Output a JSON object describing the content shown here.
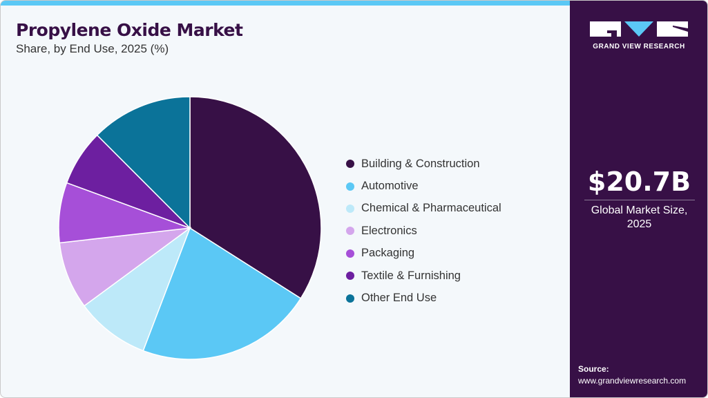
{
  "header": {
    "title": "Propylene Oxide Market",
    "subtitle": "Share, by End Use, 2025 (%)"
  },
  "brand": {
    "name": "GRAND VIEW RESEARCH",
    "accent": "#5bc8f5",
    "panel": "#371046"
  },
  "stat": {
    "value": "$20.7B",
    "label_line1": "Global Market Size,",
    "label_line2": "2025"
  },
  "source": {
    "label": "Source:",
    "url": "www.grandviewresearch.com"
  },
  "chart_data": {
    "type": "pie",
    "title": "Propylene Oxide Market",
    "subtitle": "Share, by End Use, 2025 (%)",
    "legend_position": "right",
    "start": "top, clockwise",
    "slices": [
      {
        "name": "Building & Construction",
        "value": 34.0,
        "color": "#371046"
      },
      {
        "name": "Automotive",
        "value": 21.8,
        "color": "#5bc8f5"
      },
      {
        "name": "Chemical & Pharmaceutical",
        "value": 9.1,
        "color": "#bde9f9"
      },
      {
        "name": "Electronics",
        "value": 8.3,
        "color": "#d4a6ec"
      },
      {
        "name": "Packaging",
        "value": 7.4,
        "color": "#a64fd8"
      },
      {
        "name": "Textile & Furnishing",
        "value": 6.9,
        "color": "#6d1fa0"
      },
      {
        "name": "Other End Use",
        "value": 12.5,
        "color": "#0b7399"
      }
    ]
  }
}
